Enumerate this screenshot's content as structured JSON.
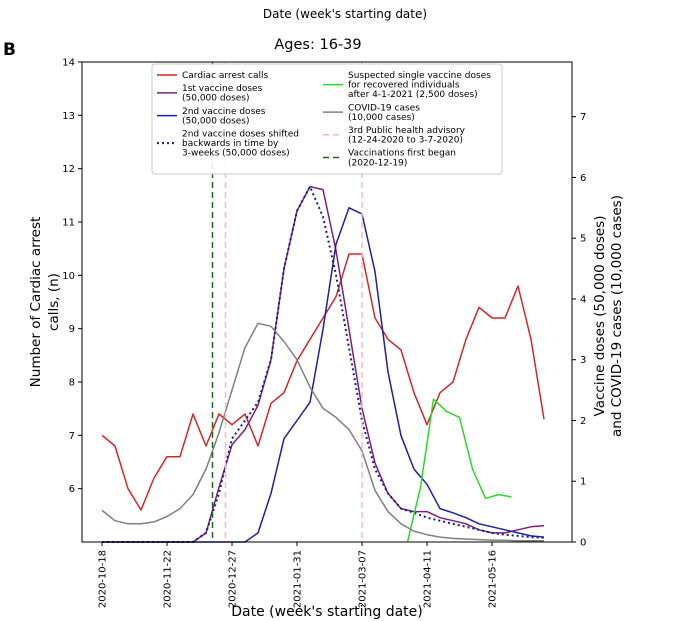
{
  "panel_label": "B",
  "chart_data": {
    "type": "line",
    "suptitle": "Date (week's starting date)",
    "title": "Ages: 16-39",
    "xlabel": "Date (week's starting date)",
    "ylabel_left": "Number of Cardiac arrest calls, (n)",
    "ylabel_right_line1": "Vaccine doses (50,000 doses)",
    "ylabel_right_line2": "and COVID-19 cases (10,000 cases)",
    "x_ticks": [
      "2020-10-18",
      "2020-11-22",
      "2020-12-27",
      "2021-01-31",
      "2021-03-07",
      "2021-04-11",
      "2021-05-16"
    ],
    "x_tick_week_index": [
      0,
      5,
      10,
      15,
      20,
      25,
      30
    ],
    "week_count": 35,
    "y_left_lim": [
      5.0,
      14.0
    ],
    "y_left_ticks": [
      6,
      7,
      8,
      9,
      10,
      11,
      12,
      13,
      14
    ],
    "y_right_lim": [
      0,
      7.9
    ],
    "y_right_ticks": [
      0,
      1,
      2,
      3,
      4,
      5,
      6,
      7
    ],
    "grid": false,
    "legend_position": "top",
    "series": [
      {
        "name": "Cardiac arrest calls",
        "axis": "left",
        "color": "#d62728",
        "style": "solid",
        "values": [
          7.0,
          6.8,
          6.0,
          5.6,
          6.2,
          6.6,
          6.6,
          7.4,
          6.8,
          7.4,
          7.2,
          7.4,
          6.8,
          7.6,
          7.8,
          8.4,
          8.8,
          9.2,
          9.6,
          10.4,
          10.4,
          9.2,
          8.8,
          8.6,
          7.8,
          7.2,
          7.8,
          8.0,
          8.8,
          9.4,
          9.2,
          9.2,
          9.8,
          8.8,
          7.3
        ]
      },
      {
        "name": "1st vaccine doses\n(50,000 doses)",
        "axis": "right",
        "color": "#7b1f7a",
        "style": "solid",
        "values": [
          0,
          0,
          0,
          0,
          0,
          0,
          0,
          0,
          0.15,
          0.9,
          1.6,
          1.85,
          2.25,
          3.0,
          4.5,
          5.45,
          5.85,
          5.8,
          4.8,
          3.5,
          2.2,
          1.3,
          0.8,
          0.55,
          0.5,
          0.5,
          0.4,
          0.35,
          0.3,
          0.2,
          0.15,
          0.15,
          0.2,
          0.25,
          0.27
        ]
      },
      {
        "name": "2nd vaccine doses\n(50,000 doses)",
        "axis": "right",
        "color": "#1f1fa8",
        "style": "solid",
        "values": [
          0,
          0,
          0,
          0,
          0,
          0,
          0,
          0,
          0,
          0,
          0,
          0,
          0.15,
          0.8,
          1.7,
          2.0,
          2.3,
          3.5,
          4.9,
          5.5,
          5.4,
          4.45,
          2.8,
          1.75,
          1.2,
          0.95,
          0.55,
          0.48,
          0.4,
          0.3,
          0.25,
          0.2,
          0.15,
          0.1,
          0.08
        ]
      },
      {
        "name": "2nd vaccine doses shifted\nbackwards in time by\n3-weeks (50,000 doses)",
        "axis": "right",
        "color": "#1a1a8c",
        "style": "dotted",
        "values": [
          0,
          0,
          0,
          0,
          0,
          0,
          0,
          0,
          0.15,
          0.8,
          1.7,
          2.0,
          2.3,
          3.0,
          4.5,
          5.45,
          5.85,
          5.35,
          4.4,
          3.2,
          2.0,
          1.2,
          0.8,
          0.55,
          0.48,
          0.4,
          0.35,
          0.3,
          0.25,
          0.2,
          0.15,
          0.12,
          0.1,
          0.08,
          0.07
        ]
      },
      {
        "name": "Suspected single vaccine doses\nfor recovered individuals\nafter 4-1-2021 (2,500 doses)",
        "axis": "right",
        "color": "#22dd22",
        "style": "solid",
        "x_index": [
          23.5,
          24.5,
          25.5,
          26.5,
          27.5,
          28.5,
          29.5,
          30.5,
          31.5
        ],
        "values": [
          0,
          0.9,
          2.35,
          2.15,
          2.05,
          1.2,
          0.72,
          0.78,
          0.74
        ]
      },
      {
        "name": "COVID-19 cases\n(10,000 cases)",
        "axis": "right",
        "color": "#808080",
        "style": "solid",
        "values": [
          0.52,
          0.35,
          0.3,
          0.3,
          0.33,
          0.42,
          0.55,
          0.78,
          1.2,
          1.8,
          2.5,
          3.2,
          3.6,
          3.55,
          3.3,
          3.0,
          2.55,
          2.2,
          2.05,
          1.85,
          1.5,
          0.85,
          0.5,
          0.3,
          0.18,
          0.12,
          0.08,
          0.06,
          0.05,
          0.04,
          0.03,
          0.03,
          0.02,
          0.02,
          0.02
        ]
      },
      {
        "name": "3rd Public health advisory\n(12-24-2020 to 3-7-2020)",
        "axis": "vline",
        "color": "#ffb6c1",
        "style": "dashed",
        "x_index": [
          9.5,
          20.0
        ]
      },
      {
        "name": "Vaccinations first began\n(2020-12-19)",
        "axis": "vline",
        "color": "#1a6b1a",
        "style": "dashed",
        "x_index": [
          8.5
        ]
      }
    ]
  }
}
